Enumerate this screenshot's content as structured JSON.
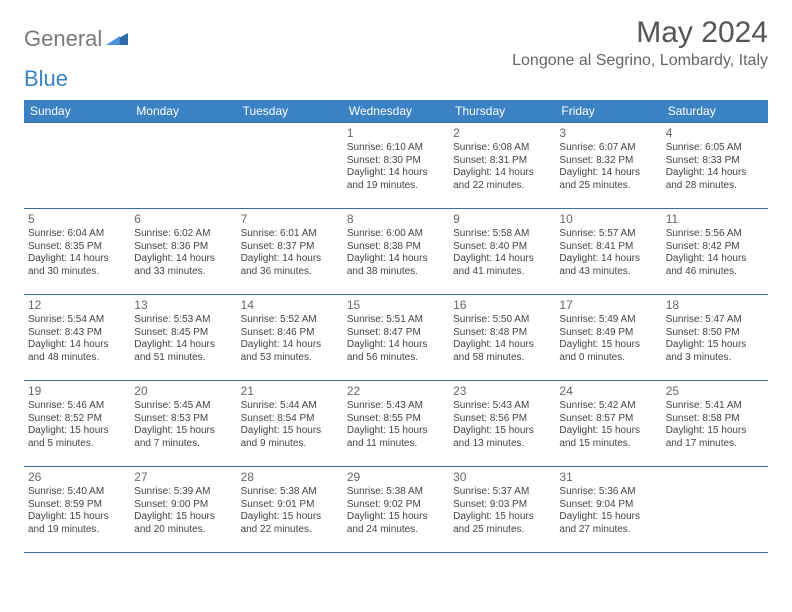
{
  "logo": {
    "text_general": "General",
    "text_blue": "Blue"
  },
  "title": "May 2024",
  "location": "Longone al Segrino, Lombardy, Italy",
  "colors": {
    "header_bg": "#3b82c4",
    "header_text": "#ffffff",
    "border": "#3b6ea0",
    "day_text": "#666666",
    "body_text": "#444444",
    "logo_gray": "#7a7a7a",
    "logo_blue": "#3b82c4",
    "background": "#ffffff"
  },
  "fonts": {
    "month_title_size": 30,
    "location_size": 16,
    "header_cell_size": 12,
    "daynum_size": 12,
    "cell_text_size": 10
  },
  "day_headers": [
    "Sunday",
    "Monday",
    "Tuesday",
    "Wednesday",
    "Thursday",
    "Friday",
    "Saturday"
  ],
  "weeks": [
    [
      {
        "day": "",
        "lines": []
      },
      {
        "day": "",
        "lines": []
      },
      {
        "day": "",
        "lines": []
      },
      {
        "day": "1",
        "lines": [
          "Sunrise: 6:10 AM",
          "Sunset: 8:30 PM",
          "Daylight: 14 hours",
          "and 19 minutes."
        ]
      },
      {
        "day": "2",
        "lines": [
          "Sunrise: 6:08 AM",
          "Sunset: 8:31 PM",
          "Daylight: 14 hours",
          "and 22 minutes."
        ]
      },
      {
        "day": "3",
        "lines": [
          "Sunrise: 6:07 AM",
          "Sunset: 8:32 PM",
          "Daylight: 14 hours",
          "and 25 minutes."
        ]
      },
      {
        "day": "4",
        "lines": [
          "Sunrise: 6:05 AM",
          "Sunset: 8:33 PM",
          "Daylight: 14 hours",
          "and 28 minutes."
        ]
      }
    ],
    [
      {
        "day": "5",
        "lines": [
          "Sunrise: 6:04 AM",
          "Sunset: 8:35 PM",
          "Daylight: 14 hours",
          "and 30 minutes."
        ]
      },
      {
        "day": "6",
        "lines": [
          "Sunrise: 6:02 AM",
          "Sunset: 8:36 PM",
          "Daylight: 14 hours",
          "and 33 minutes."
        ]
      },
      {
        "day": "7",
        "lines": [
          "Sunrise: 6:01 AM",
          "Sunset: 8:37 PM",
          "Daylight: 14 hours",
          "and 36 minutes."
        ]
      },
      {
        "day": "8",
        "lines": [
          "Sunrise: 6:00 AM",
          "Sunset: 8:38 PM",
          "Daylight: 14 hours",
          "and 38 minutes."
        ]
      },
      {
        "day": "9",
        "lines": [
          "Sunrise: 5:58 AM",
          "Sunset: 8:40 PM",
          "Daylight: 14 hours",
          "and 41 minutes."
        ]
      },
      {
        "day": "10",
        "lines": [
          "Sunrise: 5:57 AM",
          "Sunset: 8:41 PM",
          "Daylight: 14 hours",
          "and 43 minutes."
        ]
      },
      {
        "day": "11",
        "lines": [
          "Sunrise: 5:56 AM",
          "Sunset: 8:42 PM",
          "Daylight: 14 hours",
          "and 46 minutes."
        ]
      }
    ],
    [
      {
        "day": "12",
        "lines": [
          "Sunrise: 5:54 AM",
          "Sunset: 8:43 PM",
          "Daylight: 14 hours",
          "and 48 minutes."
        ]
      },
      {
        "day": "13",
        "lines": [
          "Sunrise: 5:53 AM",
          "Sunset: 8:45 PM",
          "Daylight: 14 hours",
          "and 51 minutes."
        ]
      },
      {
        "day": "14",
        "lines": [
          "Sunrise: 5:52 AM",
          "Sunset: 8:46 PM",
          "Daylight: 14 hours",
          "and 53 minutes."
        ]
      },
      {
        "day": "15",
        "lines": [
          "Sunrise: 5:51 AM",
          "Sunset: 8:47 PM",
          "Daylight: 14 hours",
          "and 56 minutes."
        ]
      },
      {
        "day": "16",
        "lines": [
          "Sunrise: 5:50 AM",
          "Sunset: 8:48 PM",
          "Daylight: 14 hours",
          "and 58 minutes."
        ]
      },
      {
        "day": "17",
        "lines": [
          "Sunrise: 5:49 AM",
          "Sunset: 8:49 PM",
          "Daylight: 15 hours",
          "and 0 minutes."
        ]
      },
      {
        "day": "18",
        "lines": [
          "Sunrise: 5:47 AM",
          "Sunset: 8:50 PM",
          "Daylight: 15 hours",
          "and 3 minutes."
        ]
      }
    ],
    [
      {
        "day": "19",
        "lines": [
          "Sunrise: 5:46 AM",
          "Sunset: 8:52 PM",
          "Daylight: 15 hours",
          "and 5 minutes."
        ]
      },
      {
        "day": "20",
        "lines": [
          "Sunrise: 5:45 AM",
          "Sunset: 8:53 PM",
          "Daylight: 15 hours",
          "and 7 minutes."
        ]
      },
      {
        "day": "21",
        "lines": [
          "Sunrise: 5:44 AM",
          "Sunset: 8:54 PM",
          "Daylight: 15 hours",
          "and 9 minutes."
        ]
      },
      {
        "day": "22",
        "lines": [
          "Sunrise: 5:43 AM",
          "Sunset: 8:55 PM",
          "Daylight: 15 hours",
          "and 11 minutes."
        ]
      },
      {
        "day": "23",
        "lines": [
          "Sunrise: 5:43 AM",
          "Sunset: 8:56 PM",
          "Daylight: 15 hours",
          "and 13 minutes."
        ]
      },
      {
        "day": "24",
        "lines": [
          "Sunrise: 5:42 AM",
          "Sunset: 8:57 PM",
          "Daylight: 15 hours",
          "and 15 minutes."
        ]
      },
      {
        "day": "25",
        "lines": [
          "Sunrise: 5:41 AM",
          "Sunset: 8:58 PM",
          "Daylight: 15 hours",
          "and 17 minutes."
        ]
      }
    ],
    [
      {
        "day": "26",
        "lines": [
          "Sunrise: 5:40 AM",
          "Sunset: 8:59 PM",
          "Daylight: 15 hours",
          "and 19 minutes."
        ]
      },
      {
        "day": "27",
        "lines": [
          "Sunrise: 5:39 AM",
          "Sunset: 9:00 PM",
          "Daylight: 15 hours",
          "and 20 minutes."
        ]
      },
      {
        "day": "28",
        "lines": [
          "Sunrise: 5:38 AM",
          "Sunset: 9:01 PM",
          "Daylight: 15 hours",
          "and 22 minutes."
        ]
      },
      {
        "day": "29",
        "lines": [
          "Sunrise: 5:38 AM",
          "Sunset: 9:02 PM",
          "Daylight: 15 hours",
          "and 24 minutes."
        ]
      },
      {
        "day": "30",
        "lines": [
          "Sunrise: 5:37 AM",
          "Sunset: 9:03 PM",
          "Daylight: 15 hours",
          "and 25 minutes."
        ]
      },
      {
        "day": "31",
        "lines": [
          "Sunrise: 5:36 AM",
          "Sunset: 9:04 PM",
          "Daylight: 15 hours",
          "and 27 minutes."
        ]
      },
      {
        "day": "",
        "lines": []
      }
    ]
  ]
}
